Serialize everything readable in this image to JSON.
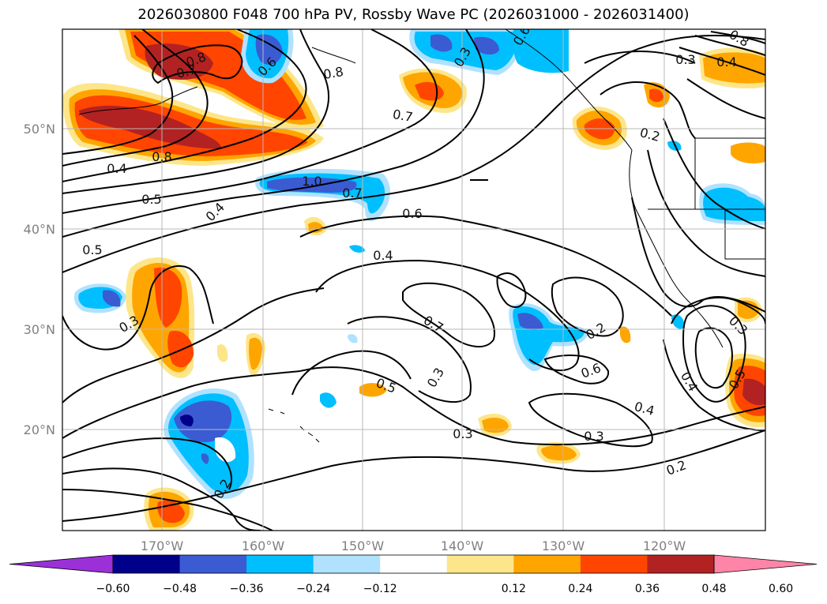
{
  "title": "2026030800 F048 700 hPa PV, Rossby Wave PC (2026031000 - 2026031400)",
  "longitude_labels": [
    "170°W",
    "160°W",
    "150°W",
    "140°W",
    "130°W",
    "120°W"
  ],
  "latitude_labels": [
    "50°N",
    "40°N",
    "30°N",
    "20°N"
  ],
  "contour_labels": [
    "0.8",
    "0.7",
    "0.6",
    "0.8",
    "0.7",
    "0.3",
    "0.6",
    "0.3",
    "0.4",
    "0.8",
    "0.5",
    "0.4",
    "1.0",
    "0.7",
    "0.6",
    "0.5",
    "0.4",
    "0.2",
    "0.8",
    "0.3",
    "0.7",
    "0.2",
    "0.3",
    "0.3",
    "0.5",
    "0.5",
    "0.4",
    "0.6",
    "0.4",
    "0.3",
    "0.3",
    "0.4",
    "0.2",
    "0.2"
  ],
  "colorbar": {
    "tick_labels": [
      "−0.60",
      "−0.48",
      "−0.36",
      "−0.24",
      "−0.12",
      "0.12",
      "0.24",
      "0.36",
      "0.48",
      "0.60"
    ],
    "colors": [
      "#9b30d9",
      "#00008b",
      "#3b5bd3",
      "#00bfff",
      "#b0e2ff",
      "#ffffff",
      "#fde68a",
      "#ffa500",
      "#ff4500",
      "#b22222",
      "#ff85a8"
    ]
  }
}
